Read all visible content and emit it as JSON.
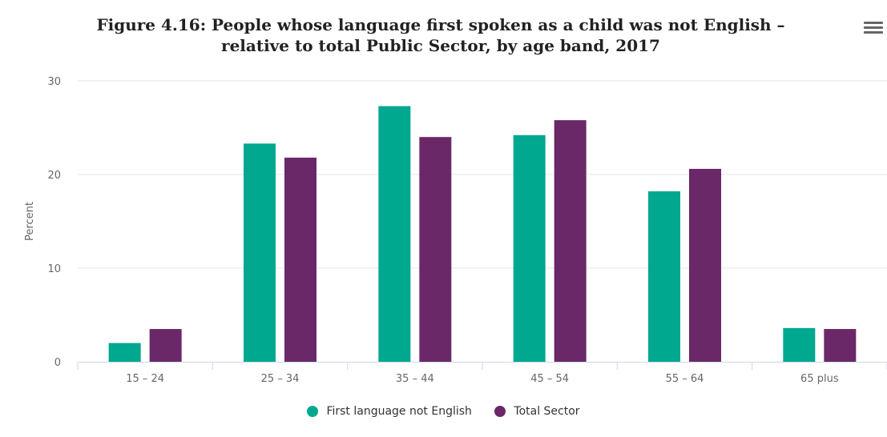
{
  "chart_data": {
    "type": "bar",
    "title": "Figure 4.16: People whose language first spoken as a child was not English – relative to total Public Sector, by age band, 2017",
    "title_line1": "Figure 4.16: People whose language first spoken as a child was not English –",
    "title_line2": "relative to total Public Sector, by age band, 2017",
    "ylabel": "Percent",
    "xlabel": "",
    "ylim": [
      0,
      30
    ],
    "yticks": [
      0,
      10,
      20,
      30
    ],
    "categories": [
      "15 – 24",
      "25 – 34",
      "35 – 44",
      "45 – 54",
      "55 – 64",
      "65 plus"
    ],
    "series": [
      {
        "name": "First language not English",
        "color": "#00a88f",
        "values": [
          2.0,
          23.3,
          27.3,
          24.2,
          18.2,
          3.6
        ]
      },
      {
        "name": "Total Sector",
        "color": "#6b2868",
        "values": [
          3.5,
          21.8,
          24.0,
          25.8,
          20.6,
          3.5
        ]
      }
    ],
    "legend": "bottom-center",
    "grid": true
  },
  "menu_icon": "hamburger-menu-icon"
}
